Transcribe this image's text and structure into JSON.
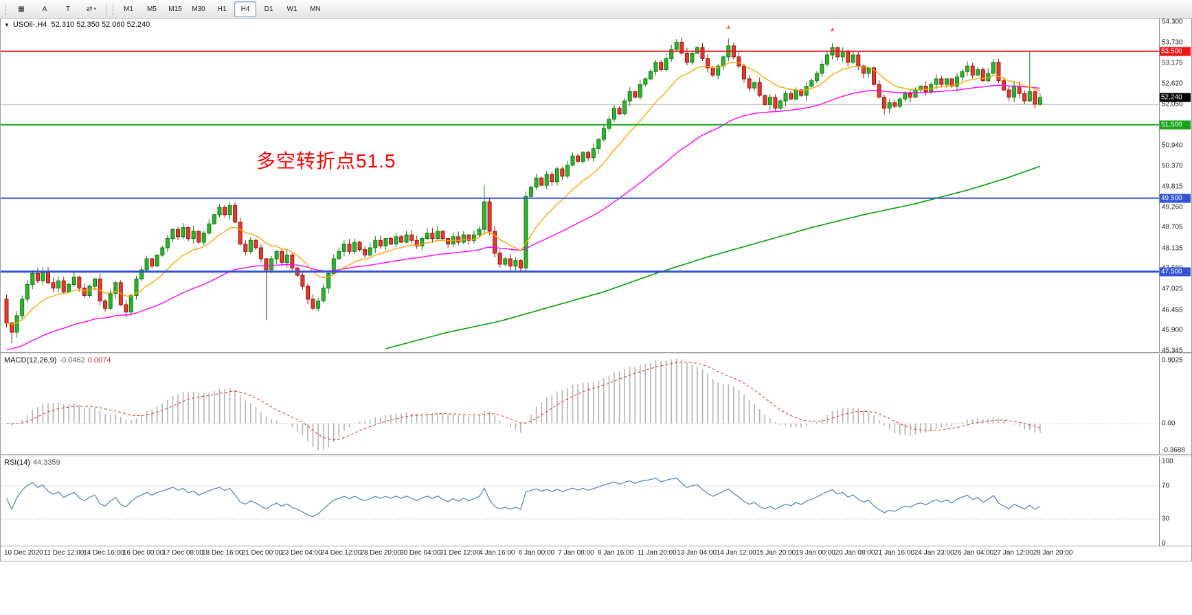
{
  "toolbar": {
    "icons": [
      {
        "name": "chart-grid-icon",
        "glyph": "▦"
      },
      {
        "name": "annotation-letter-a-icon",
        "glyph": "A"
      },
      {
        "name": "text-tool-icon",
        "glyph": "T"
      },
      {
        "name": "object-cycle-icon",
        "glyph": "⇄",
        "caret": "▾"
      }
    ],
    "timeframes": [
      "M1",
      "M5",
      "M15",
      "M30",
      "H1",
      "H4",
      "D1",
      "W1",
      "MN"
    ],
    "selected_timeframe": "H4"
  },
  "chart": {
    "collapse_glyph": "▼",
    "title_text": "USOil-,H4  52.310 52.350 52.060 52.240",
    "symbol": "USOil-",
    "period": "H4",
    "ohlc": {
      "open": "52.310",
      "high": "52.350",
      "low": "52.060",
      "close": "52.240"
    },
    "annotation": {
      "text": "多空转折点51.5",
      "color": "#ff0000"
    },
    "colors": {
      "up": "#2fb32f",
      "up_border": "#0f7a0f",
      "down": "#e23b30",
      "down_border": "#9c1410",
      "marker": "#ff0000"
    },
    "grid_line": {
      "price": 52.05,
      "color": "#b9b9b9"
    },
    "levels": [
      {
        "price": 53.5,
        "label": "53.500",
        "color": "#f21313",
        "width": 2
      },
      {
        "price": 51.5,
        "label": "51.500",
        "color": "#17a317",
        "width": 2
      },
      {
        "price": 49.5,
        "label": "49.500",
        "color": "#3353d6",
        "width": 2
      },
      {
        "price": 47.5,
        "label": "47.500",
        "color": "#3353d6",
        "width": 3
      }
    ],
    "bid": {
      "price": 52.24,
      "label": "52.240",
      "color": "#000000"
    },
    "price_axis": {
      "min": 45.345,
      "max": 54.3,
      "labels": [
        "54.300",
        "53.730",
        "53.175",
        "52.620",
        "52.050",
        "50.940",
        "50.370",
        "49.815",
        "49.260",
        "48.705",
        "48.135",
        "47.580",
        "47.025",
        "46.455",
        "45.900",
        "45.345"
      ]
    },
    "markers": [
      {
        "bar": 139,
        "price": 54.02,
        "glyph": "*"
      },
      {
        "bar": 159,
        "price": 53.95,
        "glyph": "*"
      }
    ]
  },
  "macd": {
    "title": "MACD(12,26,9)",
    "value_main": "-0.0462",
    "value_signal": "0.0074",
    "fast": 12,
    "slow": 26,
    "signal": 9,
    "axis_max": "0.9025",
    "axis_zero": "0.00",
    "axis_min": "-0.3688",
    "hist_color": "#b2b2b2",
    "signal_color": "#e03030"
  },
  "rsi": {
    "title": "RSI(14)",
    "value": "44.3359",
    "period": 14,
    "axis_labels": [
      "100",
      "70",
      "30",
      "0"
    ],
    "guide_levels": [
      70,
      30
    ],
    "color": "#4a7ebb"
  },
  "chart_data": {
    "type": "candlestick",
    "symbol": "USOil-",
    "timeframe": "H4",
    "title": "USOil-,H4",
    "ylim": [
      45.345,
      54.3
    ],
    "first_open": 46.75,
    "closes": [
      46.1,
      45.85,
      46.3,
      46.75,
      47.15,
      47.45,
      47.25,
      47.5,
      47.2,
      47.05,
      47.25,
      46.95,
      47.15,
      47.35,
      47.05,
      46.85,
      47.1,
      47.3,
      46.7,
      46.5,
      46.9,
      47.2,
      46.6,
      46.4,
      46.85,
      47.3,
      47.55,
      47.85,
      47.65,
      47.95,
      48.15,
      48.4,
      48.65,
      48.45,
      48.7,
      48.4,
      48.6,
      48.3,
      48.55,
      48.8,
      49.05,
      49.25,
      49.05,
      49.3,
      48.85,
      48.25,
      48.05,
      48.35,
      48.15,
      47.85,
      47.55,
      47.85,
      48.05,
      47.75,
      47.95,
      47.6,
      47.4,
      47.1,
      46.75,
      46.5,
      46.7,
      47.05,
      47.45,
      47.85,
      48.05,
      48.25,
      48.05,
      48.3,
      48.1,
      47.95,
      48.15,
      48.35,
      48.2,
      48.4,
      48.25,
      48.45,
      48.3,
      48.5,
      48.35,
      48.2,
      48.4,
      48.55,
      48.4,
      48.6,
      48.4,
      48.25,
      48.45,
      48.3,
      48.5,
      48.35,
      48.5,
      48.65,
      49.4,
      48.6,
      48.0,
      47.7,
      47.85,
      47.65,
      47.8,
      47.6,
      49.55,
      49.8,
      50.05,
      49.85,
      50.15,
      49.95,
      50.3,
      50.1,
      50.4,
      50.65,
      50.5,
      50.75,
      50.6,
      50.85,
      51.1,
      51.4,
      51.65,
      51.95,
      51.8,
      52.15,
      52.4,
      52.25,
      52.6,
      52.75,
      52.95,
      53.2,
      53.0,
      53.3,
      53.55,
      53.75,
      53.45,
      53.2,
      53.45,
      53.6,
      53.3,
      53.05,
      52.85,
      53.1,
      53.35,
      53.65,
      53.35,
      53.1,
      52.75,
      52.5,
      52.65,
      52.3,
      52.05,
      52.25,
      51.95,
      52.15,
      52.35,
      52.2,
      52.45,
      52.3,
      52.55,
      52.7,
      52.9,
      53.15,
      53.4,
      53.6,
      53.35,
      53.5,
      53.2,
      53.4,
      53.1,
      52.9,
      53.05,
      52.6,
      52.25,
      51.95,
      52.1,
      52.0,
      52.2,
      52.35,
      52.25,
      52.45,
      52.55,
      52.4,
      52.6,
      52.75,
      52.6,
      52.75,
      52.55,
      52.8,
      52.95,
      53.1,
      52.85,
      53.0,
      52.7,
      52.9,
      53.2,
      52.7,
      52.45,
      52.25,
      52.55,
      52.35,
      52.15,
      52.4,
      52.06,
      52.24
    ],
    "wick_overrides": {
      "1": {
        "low": 45.55
      },
      "50": {
        "low": 46.18
      },
      "92": {
        "high": 49.85
      },
      "100": {
        "low": 47.52
      },
      "139": {
        "high": 53.85
      },
      "159": {
        "high": 53.72
      },
      "169": {
        "low": 51.78
      },
      "197": {
        "high": 53.52
      }
    },
    "ma_fast": {
      "period": 13,
      "color": "#ffa500"
    },
    "ma_mid": {
      "period": 50,
      "color": "#ff00ff",
      "seed": 45.35
    },
    "ma_slow": {
      "color": "#00a000",
      "anchors": [
        [
          73,
          45.4
        ],
        [
          85,
          45.85
        ],
        [
          95,
          46.15
        ],
        [
          105,
          46.55
        ],
        [
          115,
          46.95
        ],
        [
          125,
          47.45
        ],
        [
          135,
          47.9
        ],
        [
          145,
          48.3
        ],
        [
          155,
          48.7
        ],
        [
          165,
          49.05
        ],
        [
          175,
          49.35
        ],
        [
          185,
          49.72
        ],
        [
          192,
          50.02
        ],
        [
          199,
          50.37
        ]
      ]
    },
    "time_labels": [
      "10 Dec 2020",
      "11 Dec 12:00",
      "14 Dec 16:00",
      "16 Dec 00:00",
      "17 Dec 08:00",
      "18 Dec 16:00",
      "21 Dec 00:00",
      "23 Dec 04:00",
      "24 Dec 12:00",
      "28 Dec 20:00",
      "30 Dec 04:00",
      "31 Dec 12:00",
      "4 Jan 16:00",
      "6 Jan 00:00",
      "7 Jan 08:00",
      "8 Jan 16:00",
      "11 Jan 20:00",
      "13 Jan 04:00",
      "14 Jan 12:00",
      "15 Jan 20:00",
      "19 Jan 00:00",
      "20 Jan 08:00",
      "21 Jan 16:00",
      "24 Jan 23:00",
      "26 Jan 04:00",
      "27 Jan 12:00",
      "28 Jan 20:00"
    ]
  }
}
